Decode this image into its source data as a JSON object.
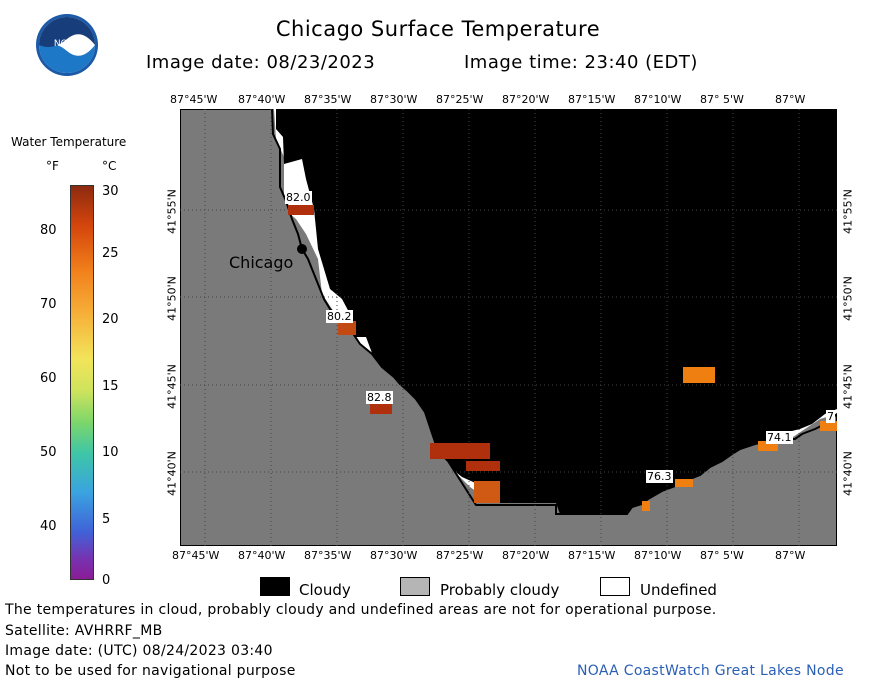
{
  "header": {
    "title": "Chicago Surface Temperature",
    "image_date": "Image date: 08/23/2023",
    "image_time": "Image time: 23:40 (EDT)"
  },
  "logo": {
    "text": "NOAA"
  },
  "map": {
    "lon_ticks": [
      "87°45'W",
      "87°40'W",
      "87°35'W",
      "87°30'W",
      "87°25'W",
      "87°20'W",
      "87°15'W",
      "87°10'W",
      "87° 5'W",
      "87°W"
    ],
    "lat_ticks": [
      "41°55'N",
      "41°50'N",
      "41°45'N",
      "41°40'N"
    ],
    "city_label": "Chicago",
    "temp_labels": [
      "82.0",
      "80.2",
      "82.8",
      "76.3",
      "74.1",
      "7"
    ],
    "colors": {
      "land": "#7a7a7a",
      "cloud": "#000000",
      "undefined": "#ffffff",
      "warm": "#f07f12",
      "hot": "#b0300e"
    }
  },
  "legend": {
    "title": "Water Temperature",
    "unit_f": "°F",
    "unit_c": "°C",
    "f_ticks": [
      "80",
      "70",
      "60",
      "50",
      "40"
    ],
    "c_ticks": [
      "30",
      "25",
      "20",
      "15",
      "10",
      "5",
      "0"
    ]
  },
  "key": {
    "cloudy": "Cloudy",
    "probably_cloudy": "Probably cloudy",
    "undefined": "Undefined"
  },
  "footer": {
    "note": "The temperatures in cloud, probably cloudy and undefined areas are not for operational purpose.",
    "satellite": "Satellite: AVHRRF_MB",
    "utc_date": "Image date: (UTC) 08/24/2023  03:40",
    "nav_warning": "Not to be used for navigational purpose",
    "credit": "NOAA CoastWatch Great Lakes Node"
  }
}
